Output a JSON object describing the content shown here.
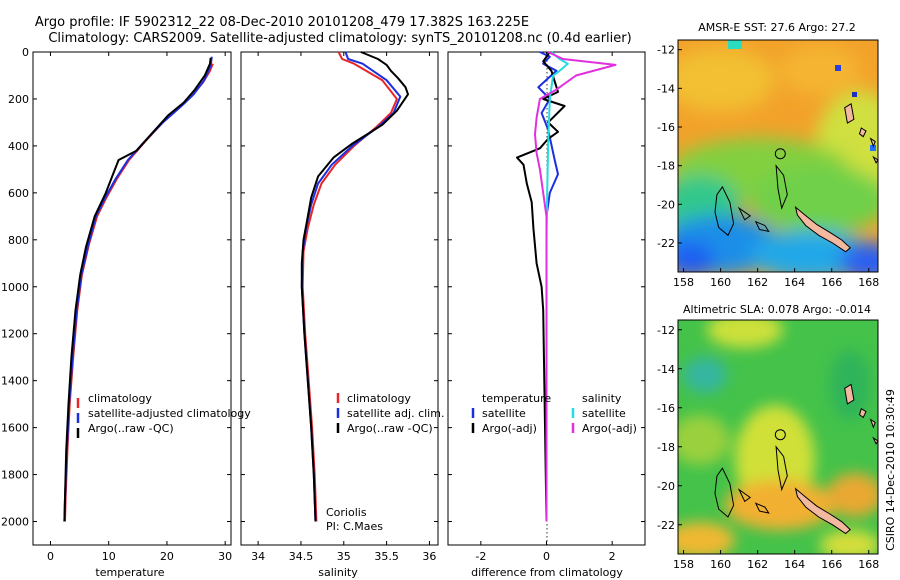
{
  "header": {
    "line1": "Argo profile: IF 5902312_22 08-Dec-2010 20101208_479 17.382S 163.225E",
    "line2": "Climatology: CARS2009. Satellite-adjusted climatology: synTS_20101208.nc (0.4d earlier)"
  },
  "colors": {
    "climatology": "#e8262a",
    "satellite": "#1b2fe0",
    "argo": "#000000",
    "sat_salinity": "#22dde0",
    "argo_adj_salinity": "#e030e0"
  },
  "chart_data": [
    {
      "type": "line",
      "id": "temperature",
      "xlabel": "temperature",
      "ylabel": "",
      "xlim": [
        -3,
        31
      ],
      "ylim": [
        0,
        2100
      ],
      "y_inverted": true,
      "xticks": [
        0,
        10,
        20,
        30
      ],
      "yticks": [
        0,
        200,
        400,
        600,
        800,
        1000,
        1200,
        1400,
        1600,
        1800,
        2000
      ],
      "legend": [
        "climatology",
        "satellite-adjusted climatology",
        "Argo(..raw -QC)"
      ],
      "series": [
        {
          "name": "climatology",
          "color": "#e8262a",
          "points": [
            [
              27.9,
              50
            ],
            [
              27.4,
              80
            ],
            [
              26.2,
              130
            ],
            [
              24.5,
              180
            ],
            [
              22.4,
              230
            ],
            [
              19.3,
              300
            ],
            [
              16.3,
              380
            ],
            [
              13.5,
              460
            ],
            [
              11.4,
              540
            ],
            [
              9.6,
              620
            ],
            [
              8.0,
              700
            ],
            [
              6.6,
              820
            ],
            [
              5.4,
              950
            ],
            [
              4.6,
              1100
            ],
            [
              3.9,
              1300
            ],
            [
              3.3,
              1500
            ],
            [
              2.9,
              1700
            ],
            [
              2.6,
              1900
            ],
            [
              2.5,
              2000
            ]
          ]
        },
        {
          "name": "satellite-adjusted climatology",
          "color": "#1b2fe0",
          "points": [
            [
              27.7,
              20
            ],
            [
              27.5,
              60
            ],
            [
              26.4,
              120
            ],
            [
              24.6,
              180
            ],
            [
              22.5,
              230
            ],
            [
              19.3,
              300
            ],
            [
              16.2,
              380
            ],
            [
              13.3,
              460
            ],
            [
              11.2,
              540
            ],
            [
              9.4,
              620
            ],
            [
              7.8,
              700
            ],
            [
              6.5,
              820
            ],
            [
              5.3,
              950
            ],
            [
              4.5,
              1100
            ],
            [
              3.8,
              1300
            ],
            [
              3.2,
              1500
            ],
            [
              2.8,
              1700
            ],
            [
              2.5,
              1900
            ],
            [
              2.4,
              2000
            ]
          ]
        },
        {
          "name": "Argo(..raw -QC)",
          "color": "#000000",
          "points": [
            [
              27.5,
              25
            ],
            [
              27.4,
              50
            ],
            [
              26.5,
              100
            ],
            [
              24.8,
              160
            ],
            [
              22.9,
              215
            ],
            [
              20.2,
              270
            ],
            [
              17.3,
              350
            ],
            [
              14.8,
              420
            ],
            [
              11.7,
              460
            ],
            [
              10.6,
              530
            ],
            [
              9.5,
              600
            ],
            [
              7.6,
              700
            ],
            [
              6.1,
              830
            ],
            [
              5.1,
              950
            ],
            [
              4.3,
              1100
            ],
            [
              3.6,
              1300
            ],
            [
              3.1,
              1500
            ],
            [
              2.7,
              1700
            ],
            [
              2.5,
              1900
            ],
            [
              2.4,
              2000
            ]
          ]
        }
      ]
    },
    {
      "type": "line",
      "id": "salinity",
      "xlabel": "salinity",
      "ylabel": "",
      "xlim": [
        33.8,
        36.1
      ],
      "ylim": [
        0,
        2100
      ],
      "y_inverted": true,
      "xticks": [
        34,
        34.5,
        35,
        35.5,
        36
      ],
      "xtick_labels": [
        "34",
        "34.5",
        "35",
        "35.5",
        "36"
      ],
      "legend": [
        "climatology",
        "satellite adj. clim.",
        "Argo(..raw -QC)"
      ],
      "annotation": [
        "Coriolis",
        "PI: C.Maes"
      ],
      "series": [
        {
          "name": "climatology",
          "color": "#e8262a",
          "points": [
            [
              34.94,
              0
            ],
            [
              34.98,
              30
            ],
            [
              35.12,
              50
            ],
            [
              35.45,
              120
            ],
            [
              35.62,
              200
            ],
            [
              35.55,
              260
            ],
            [
              35.38,
              320
            ],
            [
              35.12,
              400
            ],
            [
              34.9,
              480
            ],
            [
              34.74,
              560
            ],
            [
              34.65,
              650
            ],
            [
              34.58,
              750
            ],
            [
              34.53,
              850
            ],
            [
              34.52,
              1000
            ],
            [
              34.55,
              1200
            ],
            [
              34.59,
              1400
            ],
            [
              34.63,
              1600
            ],
            [
              34.66,
              1800
            ],
            [
              34.68,
              2000
            ]
          ]
        },
        {
          "name": "satellite adj. clim.",
          "color": "#1b2fe0",
          "points": [
            [
              35.02,
              0
            ],
            [
              35.05,
              30
            ],
            [
              35.22,
              50
            ],
            [
              35.5,
              120
            ],
            [
              35.66,
              190
            ],
            [
              35.58,
              260
            ],
            [
              35.4,
              320
            ],
            [
              35.1,
              400
            ],
            [
              34.86,
              480
            ],
            [
              34.7,
              560
            ],
            [
              34.62,
              650
            ],
            [
              34.56,
              750
            ],
            [
              34.52,
              850
            ],
            [
              34.51,
              1000
            ],
            [
              34.54,
              1200
            ],
            [
              34.58,
              1400
            ],
            [
              34.62,
              1600
            ],
            [
              34.65,
              1800
            ],
            [
              34.67,
              2000
            ]
          ]
        },
        {
          "name": "Argo(..raw -QC)",
          "color": "#000000",
          "points": [
            [
              35.2,
              0
            ],
            [
              35.4,
              30
            ],
            [
              35.5,
              55
            ],
            [
              35.55,
              80
            ],
            [
              35.63,
              110
            ],
            [
              35.72,
              150
            ],
            [
              35.75,
              180
            ],
            [
              35.62,
              250
            ],
            [
              35.45,
              310
            ],
            [
              35.1,
              390
            ],
            [
              34.88,
              450
            ],
            [
              34.7,
              530
            ],
            [
              34.62,
              620
            ],
            [
              34.57,
              720
            ],
            [
              34.53,
              800
            ],
            [
              34.51,
              900
            ],
            [
              34.51,
              1000
            ],
            [
              34.54,
              1200
            ],
            [
              34.58,
              1400
            ],
            [
              34.62,
              1600
            ],
            [
              34.65,
              1800
            ],
            [
              34.67,
              2000
            ]
          ]
        }
      ]
    },
    {
      "type": "line",
      "id": "difference",
      "xlabel": "difference from climatology",
      "ylabel": "",
      "xlim": [
        -3,
        3
      ],
      "ylim": [
        0,
        2100
      ],
      "y_inverted": true,
      "xticks": [
        -2,
        0,
        2
      ],
      "legend_temperature": [
        "temperature",
        "satellite",
        "Argo(-adj)"
      ],
      "legend_salinity": [
        "salinity",
        "satellite",
        "Argo(-adj)"
      ],
      "series": [
        {
          "name": "temperature satellite",
          "color": "#1b2fe0",
          "points": [
            [
              -0.2,
              0
            ],
            [
              0.1,
              20
            ],
            [
              -0.1,
              50
            ],
            [
              0.3,
              80
            ],
            [
              -0.25,
              150
            ],
            [
              0.1,
              200
            ],
            [
              -0.15,
              260
            ],
            [
              0.05,
              330
            ],
            [
              0.25,
              460
            ],
            [
              0.35,
              520
            ],
            [
              0.1,
              600
            ],
            [
              0,
              700
            ],
            [
              0,
              2000
            ]
          ]
        },
        {
          "name": "temperature Argo(-adj)",
          "color": "#000000",
          "points": [
            [
              0.1,
              0
            ],
            [
              -0.1,
              40
            ],
            [
              0.15,
              80
            ],
            [
              0.35,
              170
            ],
            [
              -0.1,
              200
            ],
            [
              0.55,
              230
            ],
            [
              0.05,
              300
            ],
            [
              0.35,
              340
            ],
            [
              0.05,
              370
            ],
            [
              -0.2,
              410
            ],
            [
              -0.9,
              450
            ],
            [
              -0.7,
              480
            ],
            [
              -0.6,
              560
            ],
            [
              -0.45,
              640
            ],
            [
              -0.4,
              750
            ],
            [
              -0.3,
              900
            ],
            [
              -0.15,
              1000
            ],
            [
              -0.1,
              1100
            ],
            [
              0,
              2000
            ]
          ]
        },
        {
          "name": "salinity satellite",
          "color": "#22dde0",
          "points": [
            [
              0.15,
              0
            ],
            [
              0.4,
              30
            ],
            [
              0.65,
              50
            ],
            [
              0.4,
              80
            ],
            [
              0.2,
              100
            ],
            [
              0.1,
              200
            ],
            [
              0.05,
              400
            ],
            [
              0.02,
              600
            ],
            [
              0,
              800
            ],
            [
              0,
              2000
            ]
          ]
        },
        {
          "name": "salinity Argo(-adj)",
          "color": "#e030e0",
          "points": [
            [
              0.05,
              0
            ],
            [
              0.5,
              30
            ],
            [
              2.1,
              55
            ],
            [
              0.9,
              100
            ],
            [
              0.3,
              160
            ],
            [
              -0.2,
              200
            ],
            [
              -0.3,
              280
            ],
            [
              -0.35,
              350
            ],
            [
              -0.3,
              430
            ],
            [
              -0.2,
              500
            ],
            [
              -0.1,
              600
            ],
            [
              0,
              700
            ],
            [
              0,
              800
            ],
            [
              0,
              2000
            ]
          ]
        }
      ]
    },
    {
      "type": "heatmap",
      "id": "sst_map",
      "title": "AMSR-E SST: 27.6 Argo: 27.2",
      "xlim": [
        157.7,
        168.5
      ],
      "ylim": [
        -23.5,
        -11.5
      ],
      "xticks": [
        158,
        160,
        162,
        164,
        166,
        168
      ],
      "yticks": [
        -12,
        -14,
        -16,
        -18,
        -20,
        -22
      ],
      "argo_position": [
        163.225,
        -17.382
      ]
    },
    {
      "type": "heatmap",
      "id": "sla_map",
      "title": "Altimetric SLA: 0.078 Argo: -0.014",
      "xlim": [
        157.7,
        168.5
      ],
      "ylim": [
        -23.5,
        -11.5
      ],
      "xticks": [
        158,
        160,
        162,
        164,
        166,
        168
      ],
      "yticks": [
        -12,
        -14,
        -16,
        -18,
        -20,
        -22
      ],
      "argo_position": [
        163.225,
        -17.382
      ]
    }
  ],
  "footer": {
    "credit": "CSIRO 14-Dec-2010 10:30:49"
  }
}
